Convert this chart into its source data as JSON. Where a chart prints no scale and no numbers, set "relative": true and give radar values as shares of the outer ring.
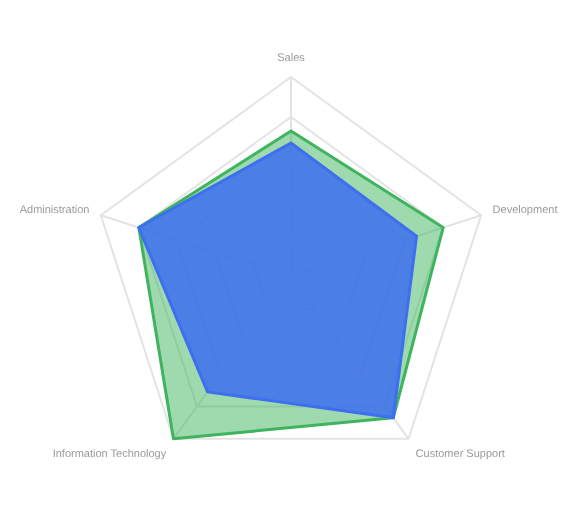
{
  "chart_data": {
    "type": "radar",
    "relative": true,
    "grid": true,
    "categories": [
      "Sales",
      "Development",
      "Customer Support",
      "Information Technology",
      "Administration"
    ],
    "series": [
      {
        "color": "#3fb45e",
        "values": [
          0.73,
          0.8,
          0.87,
          1.0,
          0.8
        ]
      },
      {
        "color": "#3d6ff0",
        "values": [
          0.67,
          0.66,
          0.87,
          0.71,
          0.8
        ]
      }
    ]
  }
}
